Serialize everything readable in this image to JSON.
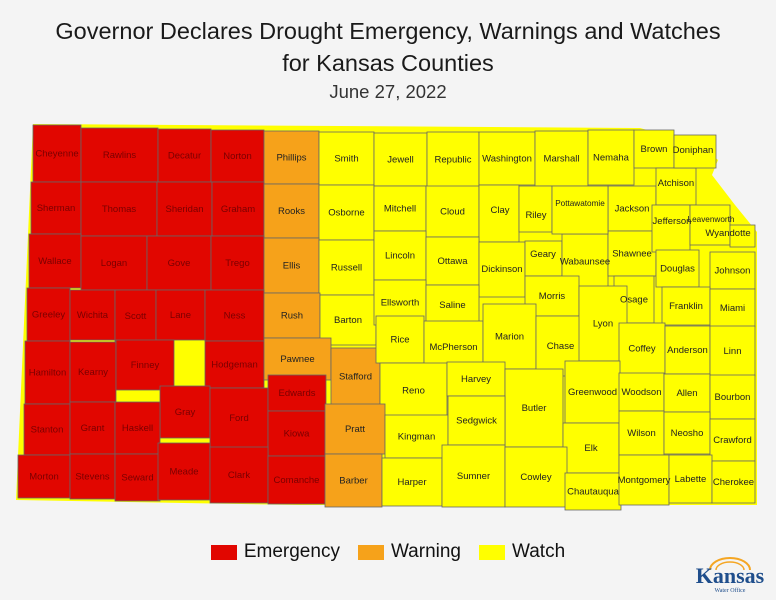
{
  "title": {
    "line1": "Governor Declares Drought Emergency, Warnings and Watches",
    "line2": "for Kansas Counties",
    "date": "June 27, 2022"
  },
  "colors": {
    "emergency": "#e10600",
    "warning": "#f6a21a",
    "watch": "#ffff00",
    "border": "#666666",
    "label": "#222222"
  },
  "legend": [
    {
      "label": "Emergency",
      "color": "#e10600"
    },
    {
      "label": "Warning",
      "color": "#f6a21a"
    },
    {
      "label": "Watch",
      "color": "#ffff00"
    }
  ],
  "logo": {
    "word": "Kansas",
    "sub": "Water Office"
  },
  "counties": {
    "emergency": [
      "Cheyenne",
      "Rawlins",
      "Decatur",
      "Norton",
      "Sherman",
      "Thomas",
      "Sheridan",
      "Graham",
      "Wallace",
      "Logan",
      "Gove",
      "Trego",
      "Greeley",
      "Wichita",
      "Scott",
      "Lane",
      "Ness",
      "Hamilton",
      "Kearny",
      "Finney",
      "Hodgeman",
      "Gray",
      "Ford",
      "Stanton",
      "Grant",
      "Haskell",
      "Morton",
      "Stevens",
      "Seward",
      "Meade",
      "Clark",
      "Edwards",
      "Kiowa",
      "Comanche"
    ],
    "warning": [
      "Phillips",
      "Rooks",
      "Ellis",
      "Rush",
      "Pawnee",
      "Stafford",
      "Pratt",
      "Barber"
    ],
    "watch": [
      "Smith",
      "Jewell",
      "Republic",
      "Washington",
      "Marshall",
      "Nemaha",
      "Brown",
      "Doniphan",
      "Osborne",
      "Mitchell",
      "Cloud",
      "Clay",
      "Riley",
      "Pottawatomie",
      "Jackson",
      "Atchison",
      "Russell",
      "Lincoln",
      "Ottawa",
      "Dickinson",
      "Geary",
      "Wabaunsee",
      "Shawnee",
      "Jefferson",
      "Leavenworth",
      "Wyandotte",
      "Douglas",
      "Johnson",
      "Barton",
      "Ellsworth",
      "Saline",
      "Morris",
      "Osage",
      "Franklin",
      "Miami",
      "Rice",
      "McPherson",
      "Marion",
      "Chase",
      "Lyon",
      "Coffey",
      "Anderson",
      "Linn",
      "Reno",
      "Harvey",
      "Butler",
      "Greenwood",
      "Woodson",
      "Allen",
      "Bourbon",
      "Kingman",
      "Sedgwick",
      "Elk",
      "Wilson",
      "Neosho",
      "Crawford",
      "Harper",
      "Sumner",
      "Cowley",
      "Chautauqua",
      "Montgomery",
      "Labette",
      "Cherokee"
    ]
  }
}
